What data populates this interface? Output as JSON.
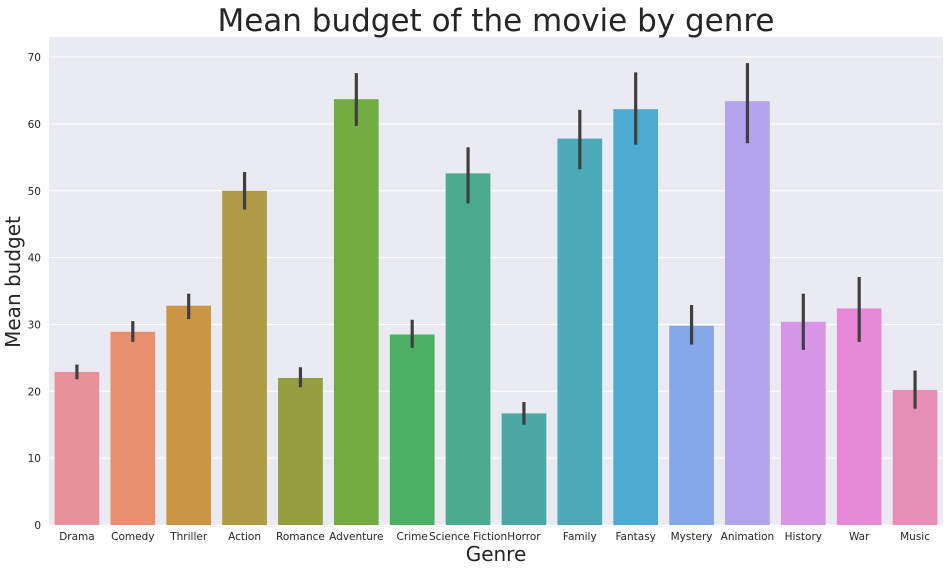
{
  "chart_data": {
    "type": "bar",
    "title": "Mean budget of the movie by genre",
    "xlabel": "Genre",
    "ylabel": "Mean budget",
    "ylim": [
      0,
      73
    ],
    "yticks": [
      0,
      10,
      20,
      30,
      40,
      50,
      60,
      70
    ],
    "grid": true,
    "categories": [
      "Drama",
      "Comedy",
      "Thriller",
      "Action",
      "Romance",
      "Adventure",
      "Crime",
      "Science Fiction",
      "Horror",
      "Family",
      "Fantasy",
      "Mystery",
      "Animation",
      "History",
      "War",
      "Music"
    ],
    "values": [
      22.9,
      28.9,
      32.8,
      50.0,
      22.0,
      63.7,
      28.5,
      52.6,
      16.7,
      57.8,
      62.2,
      29.8,
      63.4,
      30.4,
      32.4,
      20.2
    ],
    "error_low": [
      21.8,
      27.4,
      30.8,
      47.2,
      20.6,
      59.7,
      26.5,
      48.1,
      15.0,
      53.2,
      56.9,
      27.0,
      57.1,
      26.2,
      27.4,
      17.4
    ],
    "error_high": [
      24.0,
      30.5,
      34.6,
      52.8,
      23.6,
      67.6,
      30.7,
      56.5,
      18.4,
      62.1,
      67.7,
      32.9,
      69.1,
      34.6,
      37.1,
      23.1
    ],
    "colors": [
      "#e7929a",
      "#e8906d",
      "#cb9546",
      "#ad9b45",
      "#959d41",
      "#72ac42",
      "#4bb063",
      "#4aac8e",
      "#4aa9a4",
      "#4ba9b8",
      "#4faad1",
      "#86a8e8",
      "#b2a3ed",
      "#d894e5",
      "#e689d7",
      "#e78eb7"
    ],
    "colors_meta": {
      "background": "#eaeaf2",
      "grid": "#ffffff",
      "error_bar": "#3f3f3f",
      "text": "#262626"
    }
  }
}
